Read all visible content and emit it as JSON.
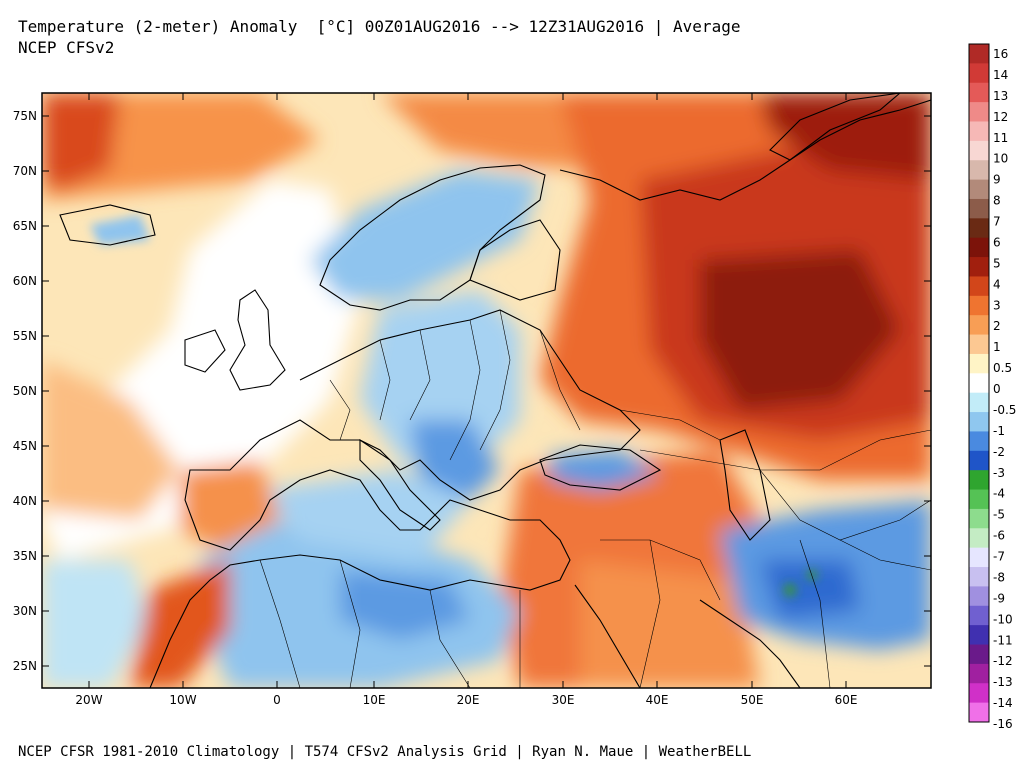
{
  "header": {
    "title": "Temperature (2-meter) Anomaly  [°C] 00Z01AUG2016 --> 12Z31AUG2016 | Average",
    "subtitle": "NCEP CFSv2"
  },
  "footer": {
    "credit": "NCEP CFSR 1981-2010 Climatology | T574 CFSv2 Analysis Grid | Ryan N. Maue | WeatherBELL"
  },
  "map": {
    "lat_labels": [
      "75N",
      "70N",
      "65N",
      "60N",
      "55N",
      "50N",
      "45N",
      "40N",
      "35N",
      "30N",
      "25N"
    ],
    "lon_labels": [
      "20W",
      "10W",
      "0",
      "10E",
      "20E",
      "30E",
      "40E",
      "50E",
      "60E"
    ],
    "colors": {
      "ocean_warm": "#fbd9a8",
      "ocean_neutral": "#ffffff",
      "warm_1": "#fbb071",
      "warm_2": "#f58340",
      "warm_3": "#e2561e",
      "warm_4": "#b52a0f",
      "warm_5": "#7c130a",
      "cold_1": "#bfe4f5",
      "cold_2": "#8fc4ee",
      "cold_3": "#5b9ae2",
      "cold_4": "#2f6bd0",
      "green": "#3a9a2a",
      "border": "#000000"
    }
  },
  "colorbar": {
    "labels": [
      "16",
      "14",
      "13",
      "12",
      "11",
      "10",
      "9",
      "8",
      "7",
      "6",
      "5",
      "4",
      "3",
      "2",
      "1",
      "0.5",
      "0",
      "-0.5",
      "-1",
      "-2",
      "-3",
      "-4",
      "-5",
      "-6",
      "-7",
      "-8",
      "-9",
      "-10",
      "-11",
      "-12",
      "-13",
      "-14",
      "-16"
    ],
    "colors": [
      "#b02a26",
      "#d13a36",
      "#e45a58",
      "#ef8a88",
      "#f6b8b6",
      "#f8d7d3",
      "#d8b8ac",
      "#b28a7a",
      "#8c5c4a",
      "#6a2a14",
      "#7c130a",
      "#a11f0e",
      "#d2461a",
      "#ef7430",
      "#f89e55",
      "#fcc892",
      "#fff4c6",
      "#ffffff",
      "#c2ecf8",
      "#8fc7ef",
      "#4a8ae0",
      "#1f55c8",
      "#2fa52f",
      "#55c255",
      "#8ddc8d",
      "#c4ecc4",
      "#e6e6ff",
      "#c8c0f0",
      "#a090e0",
      "#7060d0",
      "#4030b0",
      "#6a1a8a",
      "#a020a0",
      "#d030c8",
      "#f070e8"
    ]
  }
}
